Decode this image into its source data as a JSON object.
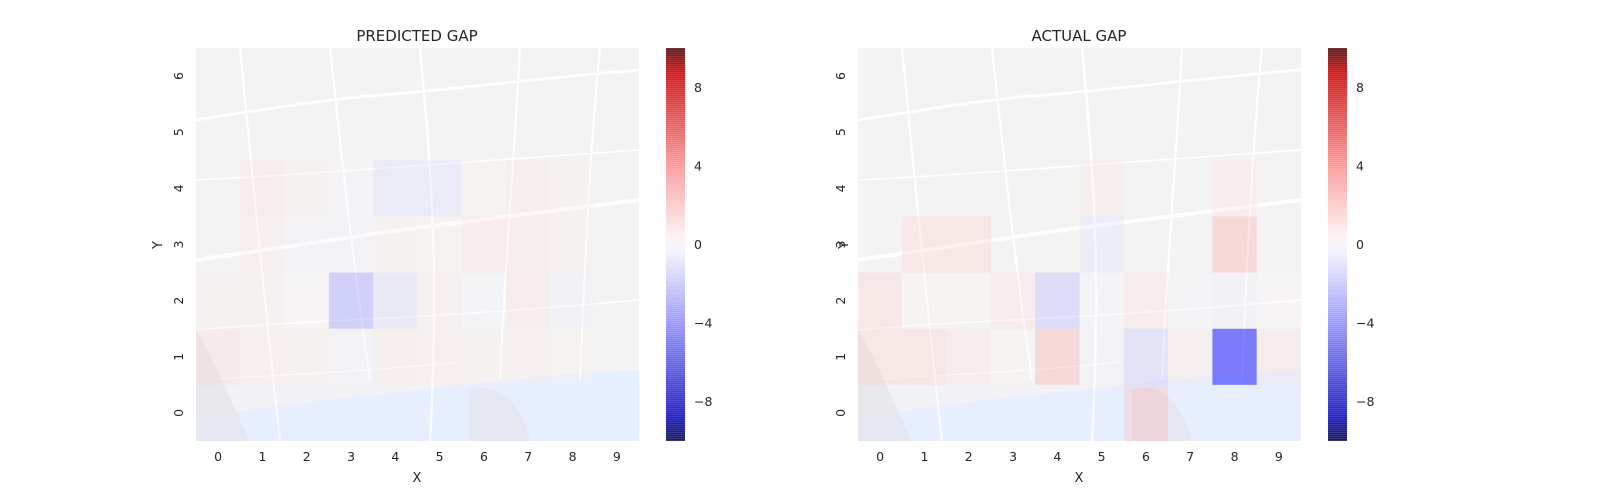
{
  "colors": {
    "map_base": "#ededed",
    "river": "#d6e6ff",
    "river_bank": "#ccdfff",
    "cmap_low": "#00008a",
    "cmap_mid": "#ffffff",
    "cmap_high": "#8a0000"
  },
  "chart_data": [
    {
      "type": "heatmap",
      "title": "PREDICTED GAP",
      "xlabel": "X",
      "ylabel": "Y",
      "x_ticks": [
        "0",
        "1",
        "2",
        "3",
        "4",
        "5",
        "6",
        "7",
        "8",
        "9"
      ],
      "y_ticks": [
        "0",
        "1",
        "2",
        "3",
        "4",
        "5",
        "6"
      ],
      "xlim": [
        -0.5,
        9.5
      ],
      "ylim": [
        -0.5,
        6.5
      ],
      "colorbar": {
        "ticks": [
          "−8",
          "−4",
          "0",
          "4",
          "8"
        ],
        "tick_values": [
          -8,
          -4,
          0,
          4,
          8
        ],
        "range": [
          -10,
          10
        ]
      },
      "cells": [
        [
          0,
          1,
          1.3
        ],
        [
          1,
          1,
          0.8
        ],
        [
          2,
          1,
          0.6
        ],
        [
          3,
          1,
          -0.3
        ],
        [
          4,
          1,
          0.9
        ],
        [
          5,
          1,
          0.8
        ],
        [
          6,
          1,
          0.6
        ],
        [
          7,
          1,
          0.7
        ],
        [
          8,
          1,
          0.4
        ],
        [
          0,
          2,
          0.6
        ],
        [
          1,
          2,
          0.6
        ],
        [
          2,
          2,
          0.2
        ],
        [
          3,
          2,
          -3.0
        ],
        [
          4,
          2,
          -1.3
        ],
        [
          5,
          2,
          0.8
        ],
        [
          6,
          2,
          -0.2
        ],
        [
          7,
          2,
          1.0
        ],
        [
          8,
          2,
          -0.6
        ],
        [
          1,
          3,
          0.8
        ],
        [
          2,
          3,
          -0.3
        ],
        [
          3,
          3,
          -0.3
        ],
        [
          4,
          3,
          0.6
        ],
        [
          5,
          3,
          0.4
        ],
        [
          6,
          3,
          1.2
        ],
        [
          7,
          3,
          0.9
        ],
        [
          8,
          3,
          0.6
        ],
        [
          1,
          4,
          1.0
        ],
        [
          2,
          4,
          0.6
        ],
        [
          3,
          4,
          -0.2
        ],
        [
          4,
          4,
          -1.2
        ],
        [
          5,
          4,
          -1.2
        ],
        [
          6,
          4,
          0.5
        ],
        [
          7,
          4,
          0.9
        ],
        [
          8,
          4,
          0.6
        ],
        [
          0,
          0,
          -0.4
        ],
        [
          1,
          0,
          -0.4
        ],
        [
          2,
          0,
          -0.4
        ],
        [
          3,
          0,
          -0.4
        ],
        [
          4,
          0,
          -0.4
        ],
        [
          5,
          0,
          -0.4
        ],
        [
          6,
          0,
          -0.4
        ],
        [
          7,
          0,
          -0.4
        ],
        [
          8,
          0,
          -0.5
        ],
        [
          9,
          0,
          -0.4
        ]
      ]
    },
    {
      "type": "heatmap",
      "title": "ACTUAL GAP",
      "xlabel": "X",
      "ylabel": "Y",
      "x_ticks": [
        "0",
        "1",
        "2",
        "3",
        "4",
        "5",
        "6",
        "7",
        "8",
        "9"
      ],
      "y_ticks": [
        "0",
        "1",
        "2",
        "3",
        "4",
        "5",
        "6"
      ],
      "xlim": [
        -0.5,
        9.5
      ],
      "ylim": [
        -0.5,
        6.5
      ],
      "colorbar": {
        "ticks": [
          "−8",
          "−4",
          "0",
          "4",
          "8"
        ],
        "tick_values": [
          -8,
          -4,
          0,
          4,
          8
        ],
        "range": [
          -10,
          10
        ]
      },
      "cells": [
        [
          0,
          1,
          1.5
        ],
        [
          1,
          1,
          1.5
        ],
        [
          2,
          1,
          1.0
        ],
        [
          3,
          1,
          0.3
        ],
        [
          4,
          1,
          2.5
        ],
        [
          5,
          1,
          -0.3
        ],
        [
          6,
          1,
          -1.8
        ],
        [
          7,
          1,
          0.8
        ],
        [
          8,
          1,
          -6.5
        ],
        [
          9,
          1,
          1.0
        ],
        [
          0,
          2,
          1.5
        ],
        [
          1,
          2,
          0.3
        ],
        [
          2,
          2,
          0.3
        ],
        [
          3,
          2,
          1.2
        ],
        [
          4,
          2,
          -2.2
        ],
        [
          5,
          2,
          -0.2
        ],
        [
          6,
          2,
          1.2
        ],
        [
          7,
          2,
          -0.2
        ],
        [
          8,
          2,
          -0.6
        ],
        [
          9,
          2,
          0.2
        ],
        [
          1,
          3,
          1.5
        ],
        [
          2,
          3,
          1.5
        ],
        [
          5,
          3,
          -1.0
        ],
        [
          8,
          3,
          2.5
        ],
        [
          5,
          4,
          0.9
        ],
        [
          8,
          4,
          1.2
        ],
        [
          0,
          0,
          -0.4
        ],
        [
          1,
          0,
          -0.4
        ],
        [
          2,
          0,
          -0.4
        ],
        [
          3,
          0,
          -0.4
        ],
        [
          4,
          0,
          -0.4
        ],
        [
          5,
          0,
          -0.4
        ],
        [
          6,
          0,
          2.2
        ],
        [
          7,
          0,
          -0.4
        ],
        [
          8,
          0,
          -0.6
        ],
        [
          9,
          0,
          -0.4
        ]
      ]
    }
  ]
}
